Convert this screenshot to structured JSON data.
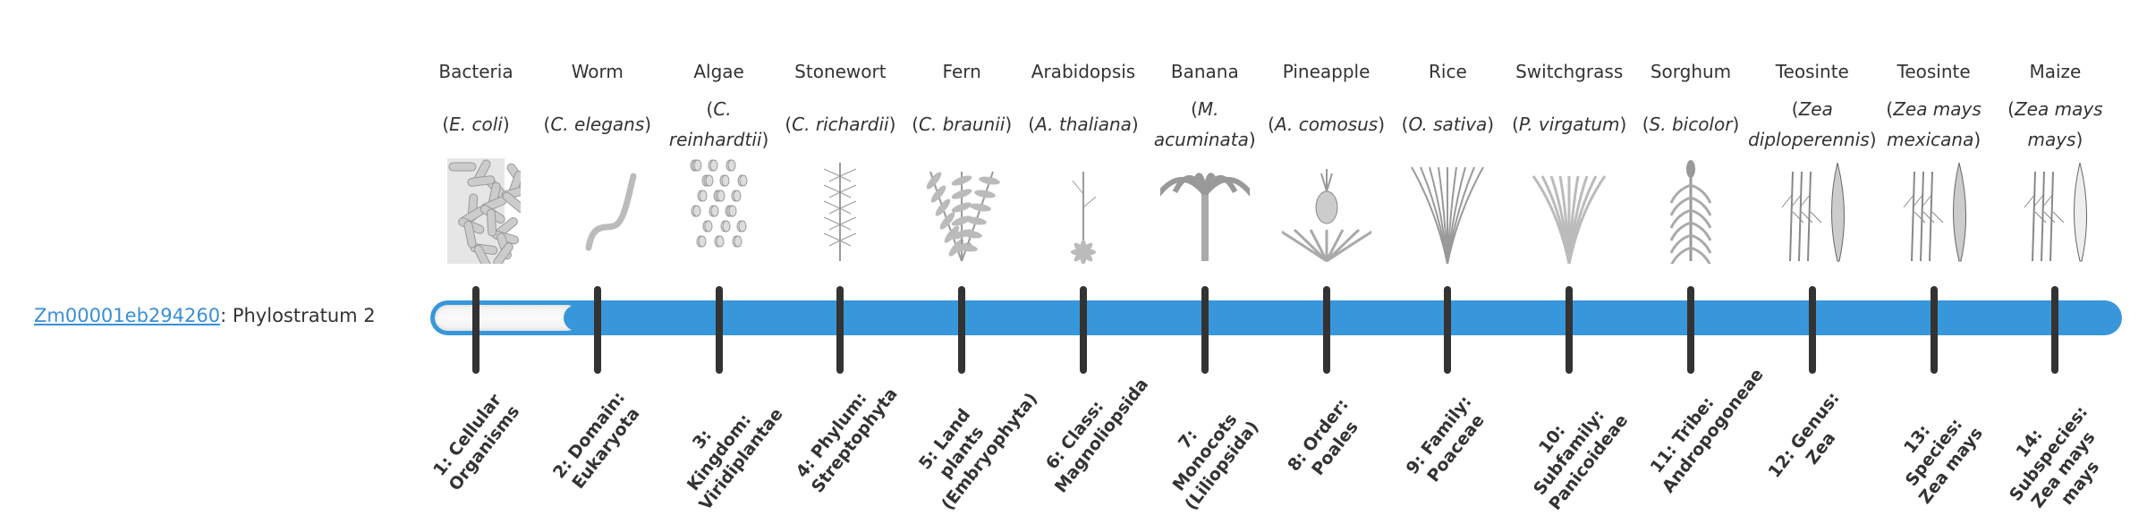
{
  "gene": {
    "id": "Zm00001eb294260",
    "separator": ": ",
    "label": "Phylostratum 2"
  },
  "slider": {
    "value": 2,
    "min": 1,
    "max": 14,
    "fill_color": "#3897db"
  },
  "strata": [
    {
      "common": "Bacteria",
      "scientific": "E. coli",
      "rank": "1: Cellular Organisms",
      "icon": "bacteria"
    },
    {
      "common": "Worm",
      "scientific": "C. elegans",
      "rank": "2: Domain: Eukaryota",
      "icon": "worm"
    },
    {
      "common": "Algae",
      "scientific": "C. reinhardtii",
      "rank": "3: Kingdom: Viridiplantae",
      "icon": "algae"
    },
    {
      "common": "Stonewort",
      "scientific": "C. richardii",
      "rank": "4: Phylum: Streptophyta",
      "icon": "stonewort"
    },
    {
      "common": "Fern",
      "scientific": "C. braunii",
      "rank": "5: Land plants (Embryophyta)",
      "icon": "fern"
    },
    {
      "common": "Arabidopsis",
      "scientific": "A. thaliana",
      "rank": "6: Class: Magnoliopsida",
      "icon": "arabidopsis"
    },
    {
      "common": "Banana",
      "scientific": "M. acuminata",
      "rank": "7: Monocots (Liliopsida)",
      "icon": "banana"
    },
    {
      "common": "Pineapple",
      "scientific": "A. comosus",
      "rank": "8: Order: Poales",
      "icon": "pineapple"
    },
    {
      "common": "Rice",
      "scientific": "O. sativa",
      "rank": "9: Family: Poaceae",
      "icon": "rice"
    },
    {
      "common": "Switchgrass",
      "scientific": "P. virgatum",
      "rank": "10: Subfamily: Panicoideae",
      "icon": "switchgrass"
    },
    {
      "common": "Sorghum",
      "scientific": "S. bicolor",
      "rank": "11: Tribe: Andropogoneae",
      "icon": "sorghum"
    },
    {
      "common": "Teosinte",
      "scientific": "Zea diploperennis",
      "rank": "12: Genus: Zea",
      "icon": "teosinte"
    },
    {
      "common": "Teosinte",
      "scientific": "Zea mays mexicana",
      "rank": "13: Species: Zea mays",
      "icon": "teosinte"
    },
    {
      "common": "Maize",
      "scientific": "Zea mays mays",
      "rank": "14: Subspecies: Zea mays mays",
      "icon": "maize"
    }
  ]
}
